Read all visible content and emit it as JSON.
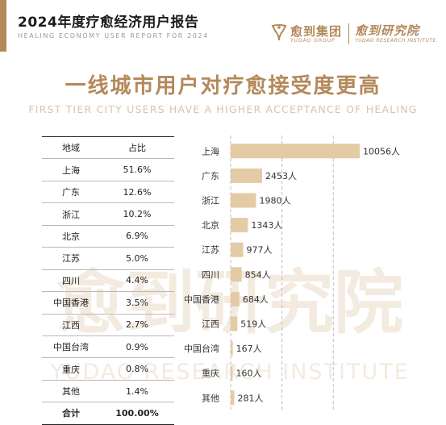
{
  "header": {
    "title": "2024年度疗愈经济用户报告",
    "subtitle": "HEALING ECONOMY USER REPORT FOR 2024",
    "logo_name": "愈到集团",
    "logo_en": "YUDAO GROUP",
    "institute_name": "愈到研究院",
    "institute_en": "YUDAO RESEARCH INSTITUTE"
  },
  "headline": "一线城市用户对疗愈接受度更高",
  "headline_en": "FIRST TIER CITY USERS HAVE A HIGHER ACCEPTANCE OF HEALING",
  "watermark": {
    "text": "愈到研究院",
    "en": "YUDAO RESEARCH INSTITUTE"
  },
  "colors": {
    "accent": "#b4895a",
    "bar": "#e4cba5",
    "watermark": "#f3ebe0"
  },
  "table": {
    "headers": [
      "地域",
      "占比"
    ],
    "rows": [
      [
        "上海",
        "51.6%"
      ],
      [
        "广东",
        "12.6%"
      ],
      [
        "浙江",
        "10.2%"
      ],
      [
        "北京",
        "6.9%"
      ],
      [
        "江苏",
        "5.0%"
      ],
      [
        "四川",
        "4.4%"
      ],
      [
        "中国香港",
        "3.5%"
      ],
      [
        "江西",
        "2.7%"
      ],
      [
        "中国台湾",
        "0.9%"
      ],
      [
        "重庆",
        "0.8%"
      ],
      [
        "其他",
        "1.4%"
      ]
    ],
    "total": [
      "合计",
      "100.00%"
    ]
  },
  "chart_data": {
    "type": "bar",
    "orientation": "horizontal",
    "categories": [
      "上海",
      "广东",
      "浙江",
      "北京",
      "江苏",
      "四川",
      "中国香港",
      "江西",
      "中国台湾",
      "重庆",
      "其他"
    ],
    "values": [
      10056,
      2453,
      1980,
      1343,
      977,
      854,
      684,
      519,
      167,
      160,
      281
    ],
    "value_labels": [
      "10056人",
      "2453人",
      "1980人",
      "1343人",
      "977人",
      "854人",
      "684人",
      "519人",
      "167人",
      "160人",
      "281人"
    ],
    "xlim": [
      0,
      11500
    ],
    "grid": "dashed vertical lines at 4000 and 8000"
  }
}
